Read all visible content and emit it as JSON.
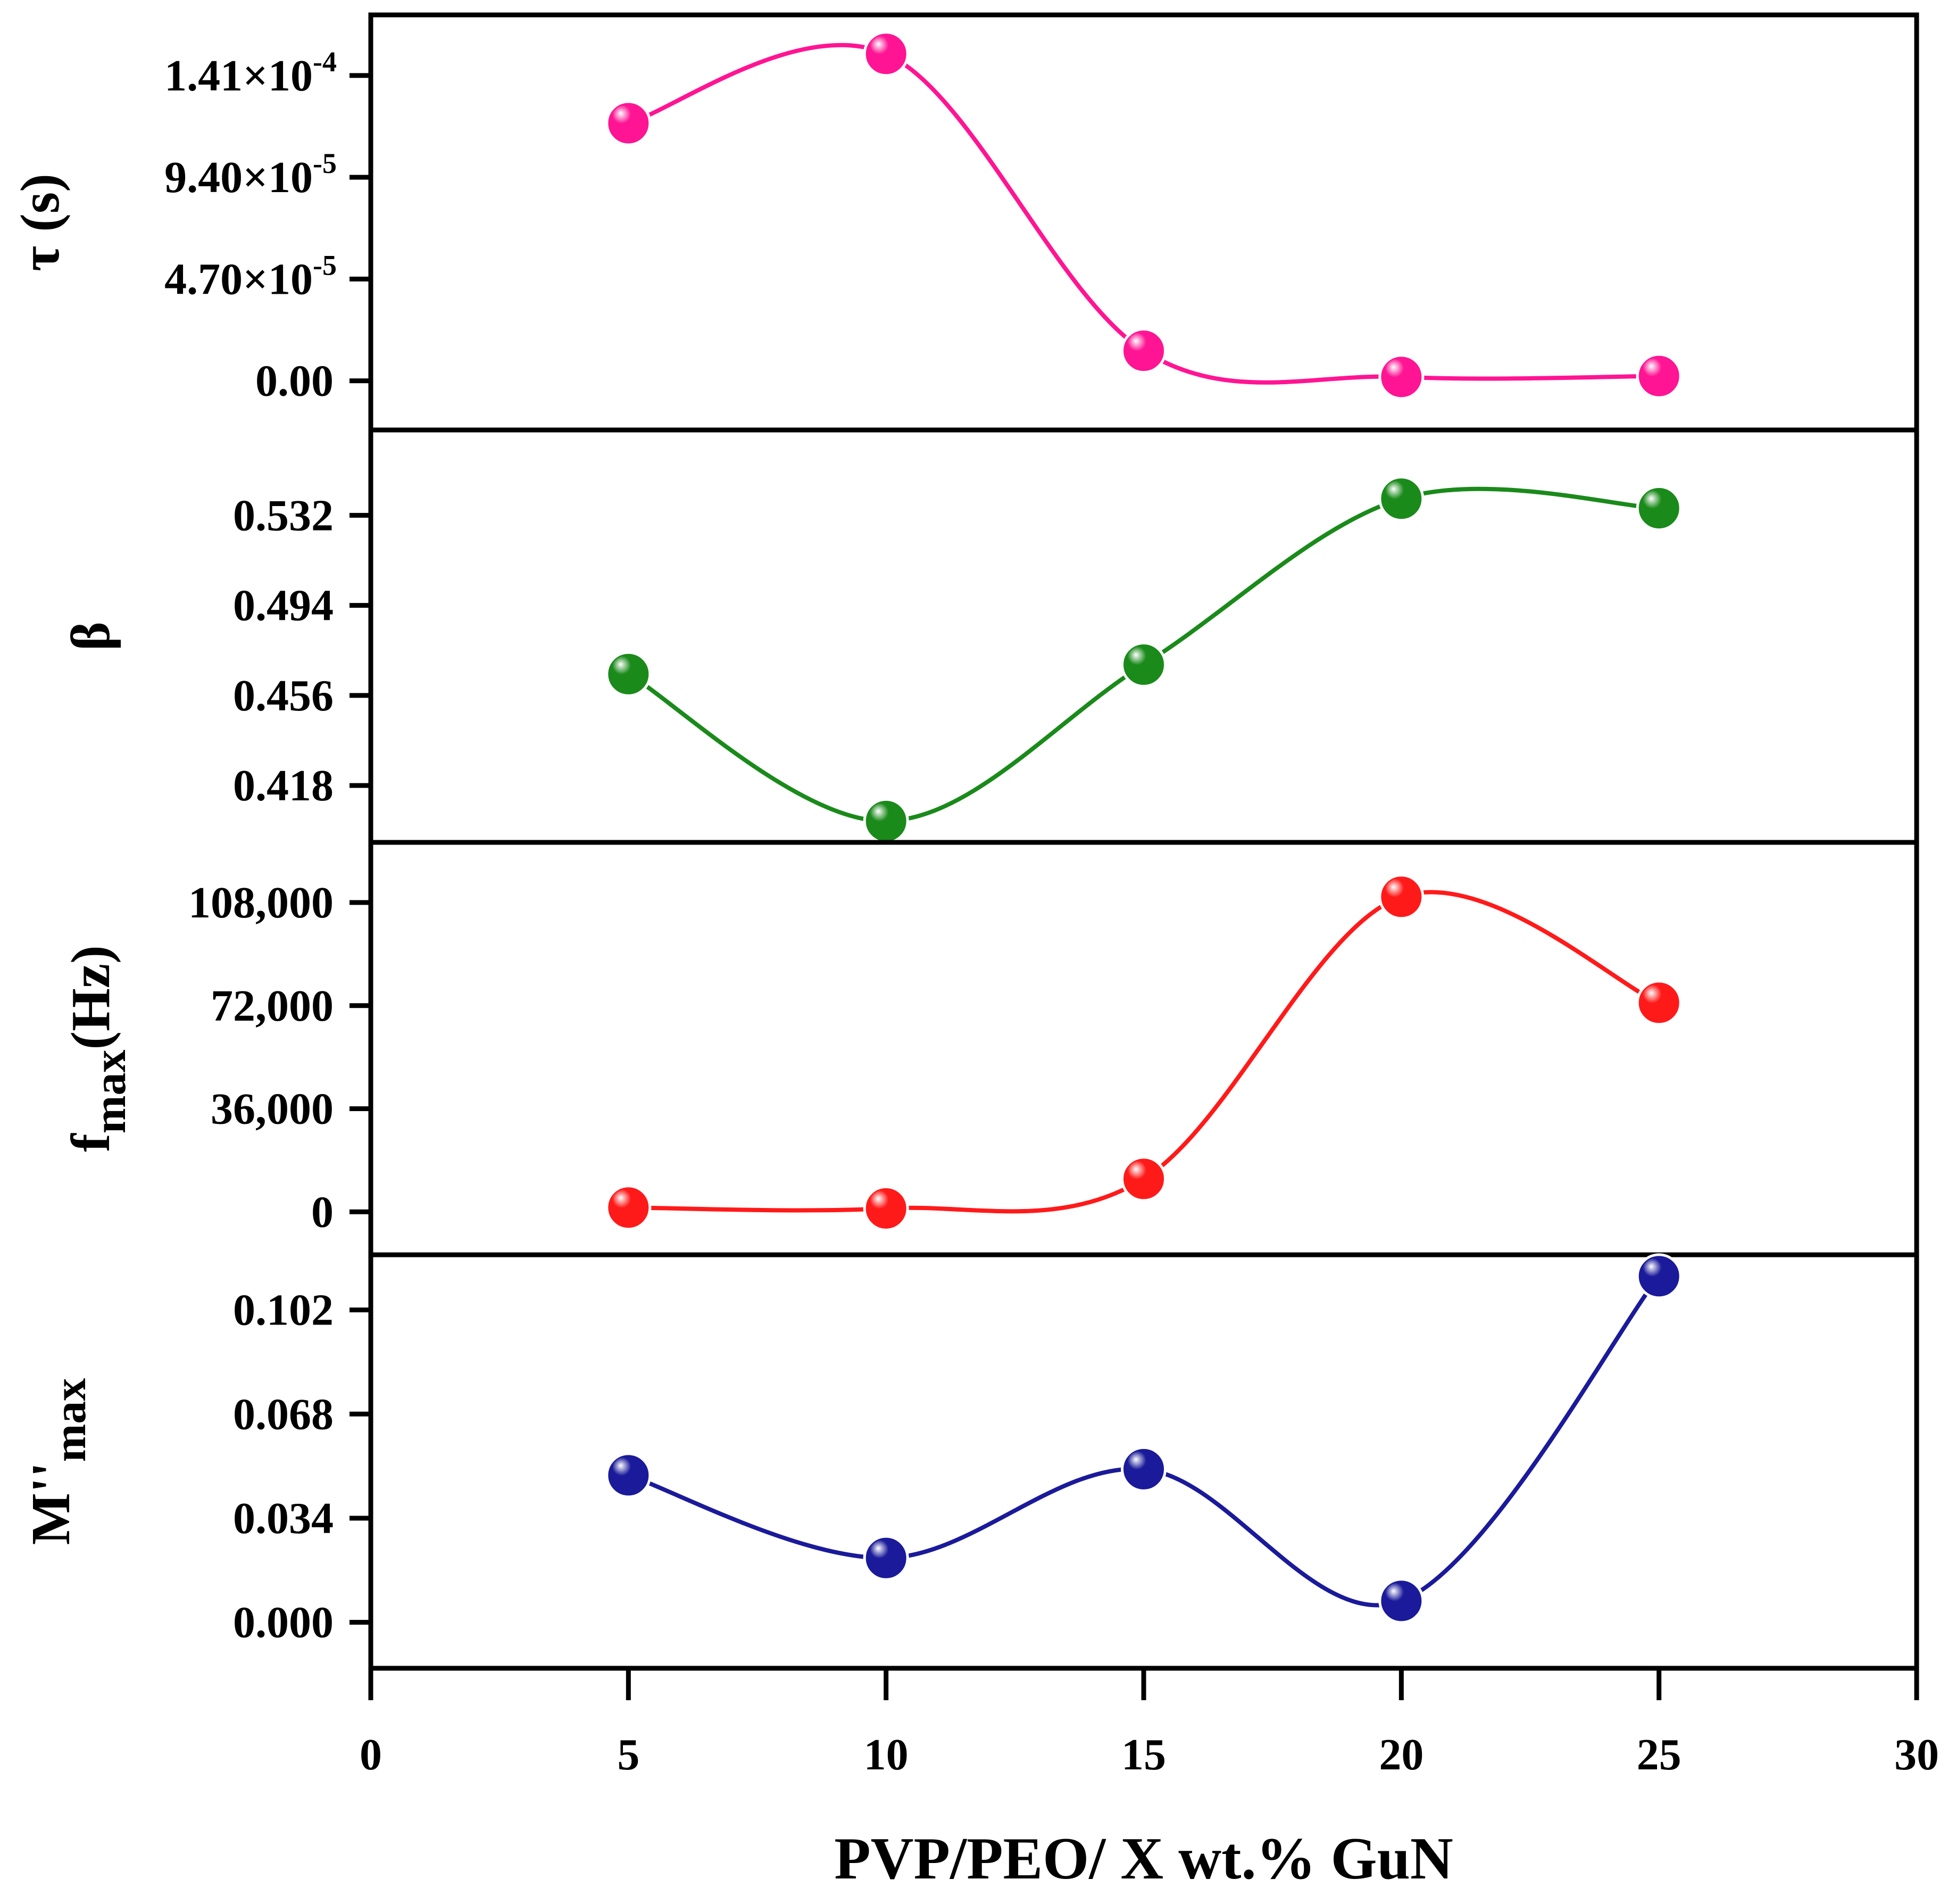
{
  "chart_data": {
    "type": "line",
    "x": [
      5,
      10,
      15,
      20,
      25
    ],
    "xlim": [
      0,
      30
    ],
    "xticks": [
      "0",
      "5",
      "10",
      "15",
      "20",
      "25",
      "30"
    ],
    "xlabel": "PVP/PEO/ X wt.% GuN",
    "panels": [
      {
        "id": "tau",
        "ylabel": "τ (s)",
        "color": "#ff1493",
        "values": [
          0.000119,
          0.000151,
          1.39e-05,
          1.8e-06,
          2.2e-06
        ],
        "ylim": [
          -2.27e-05,
          0.000169
        ],
        "yticks": [
          {
            "value": 0,
            "mantissa": "0.00",
            "exp": ""
          },
          {
            "value": 4.7e-05,
            "mantissa": "4.70×10",
            "exp": "-5"
          },
          {
            "value": 9.4e-05,
            "mantissa": "9.40×10",
            "exp": "-5"
          },
          {
            "value": 0.000141,
            "mantissa": "1.41×10",
            "exp": "-4"
          }
        ]
      },
      {
        "id": "beta",
        "ylabel": "β",
        "color": "#1a8a1a",
        "values": [
          0.465,
          0.403,
          0.469,
          0.539,
          0.535
        ],
        "ylim": [
          0.394,
          0.568
        ],
        "yticks": [
          {
            "value": 0.418,
            "mantissa": "0.418",
            "exp": ""
          },
          {
            "value": 0.456,
            "mantissa": "0.456",
            "exp": ""
          },
          {
            "value": 0.494,
            "mantissa": "0.494",
            "exp": ""
          },
          {
            "value": 0.532,
            "mantissa": "0.532",
            "exp": ""
          }
        ]
      },
      {
        "id": "fmax",
        "ylabel_main": "f",
        "ylabel_sub": "max",
        "ylabel_tail": "(Hz)",
        "color": "#ff1a1a",
        "values": [
          1500,
          1200,
          11500,
          110000,
          73000
        ],
        "ylim": [
          -15000,
          129000
        ],
        "yticks": [
          {
            "value": 0,
            "mantissa": "0",
            "exp": ""
          },
          {
            "value": 36000,
            "mantissa": "36,000",
            "exp": ""
          },
          {
            "value": 72000,
            "mantissa": "72,000",
            "exp": ""
          },
          {
            "value": 108000,
            "mantissa": "108,000",
            "exp": ""
          }
        ]
      },
      {
        "id": "mmax",
        "ylabel_main": "M''",
        "ylabel_sub": "max",
        "ylabel_tail": "",
        "color": "#1a1a9a",
        "values": [
          0.048,
          0.021,
          0.05,
          0.007,
          0.113
        ],
        "ylim": [
          -0.015,
          0.12
        ],
        "yticks": [
          {
            "value": 0,
            "mantissa": "0.000",
            "exp": ""
          },
          {
            "value": 0.034,
            "mantissa": "0.034",
            "exp": ""
          },
          {
            "value": 0.068,
            "mantissa": "0.068",
            "exp": ""
          },
          {
            "value": 0.102,
            "mantissa": "0.102",
            "exp": ""
          }
        ]
      }
    ]
  }
}
